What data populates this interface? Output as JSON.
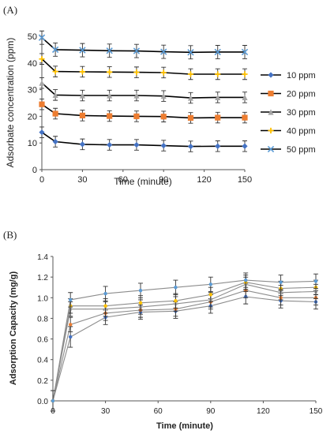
{
  "panels": {
    "a": "(A)",
    "b": "(B)"
  },
  "colors": {
    "10 ppm": "#4472c4",
    "20 ppm": "#ed7d31",
    "30 ppm": "#a5a5a5",
    "40 ppm": "#ffc000",
    "50 ppm": "#5b9bd5",
    "axis": "#555555",
    "error_bar": "#333333"
  },
  "chart_data": [
    {
      "type": "line",
      "panel": "(A)",
      "xlabel": "Time (minute)",
      "ylabel": "Adsorbate concentration (ppm)",
      "xlim": [
        0,
        150
      ],
      "ylim": [
        0,
        50
      ],
      "xticks": [
        0,
        30,
        60,
        90,
        120,
        150
      ],
      "yticks": [
        0,
        10,
        20,
        30,
        40,
        50
      ],
      "grid": false,
      "legend": "right",
      "x": [
        0,
        10,
        30,
        50,
        70,
        90,
        110,
        130,
        150
      ],
      "series": [
        {
          "name": "10 ppm",
          "marker": "diamond",
          "values": [
            14,
            10.5,
            9.5,
            9.3,
            9.3,
            9.0,
            8.7,
            8.8,
            8.8
          ],
          "error": [
            2,
            2,
            2,
            2,
            2,
            2,
            2,
            2,
            2
          ]
        },
        {
          "name": "20 ppm",
          "marker": "square",
          "values": [
            24.5,
            21,
            20.3,
            20.1,
            20,
            19.9,
            19.4,
            19.5,
            19.5
          ],
          "error": [
            2,
            2,
            2,
            2,
            2,
            2,
            2,
            2,
            2
          ]
        },
        {
          "name": "30 ppm",
          "marker": "triangle",
          "values": [
            32.5,
            28,
            27.8,
            27.8,
            27.8,
            27.6,
            26.9,
            27.1,
            27.1
          ],
          "error": [
            2,
            2,
            2,
            2,
            2,
            2,
            2,
            2,
            2
          ]
        },
        {
          "name": "40 ppm",
          "marker": "plus",
          "values": [
            41.5,
            36.8,
            36.7,
            36.6,
            36.5,
            36.4,
            35.8,
            35.8,
            35.8
          ],
          "error": [
            2,
            2,
            2,
            2,
            2,
            2,
            2,
            2,
            2
          ]
        },
        {
          "name": "50 ppm",
          "marker": "x",
          "values": [
            49.5,
            45,
            44.8,
            44.6,
            44.5,
            44.2,
            44.0,
            44.1,
            44.1
          ],
          "error": [
            2.5,
            2.5,
            2.5,
            2.5,
            2.5,
            2.5,
            2.5,
            2.5,
            2.5
          ]
        }
      ]
    },
    {
      "type": "line",
      "panel": "(B)",
      "xlabel": "Time (minute)",
      "ylabel": "Adsorption Capacity (mg/g)",
      "xlim": [
        0,
        150
      ],
      "ylim": [
        0,
        1.4
      ],
      "xticks": [
        0,
        30,
        60,
        90,
        120,
        150
      ],
      "yticks": [
        0.0,
        0.2,
        0.4,
        0.6,
        0.8,
        1.0,
        1.2,
        1.4
      ],
      "grid": false,
      "legend": "none",
      "x": [
        0,
        10,
        30,
        50,
        70,
        90,
        110,
        130,
        150
      ],
      "series": [
        {
          "name": "10 ppm",
          "values": [
            0,
            0.62,
            0.81,
            0.86,
            0.87,
            0.92,
            1.01,
            0.97,
            0.96
          ],
          "error": [
            0.1,
            0.1,
            0.07,
            0.07,
            0.07,
            0.07,
            0.07,
            0.07,
            0.07
          ]
        },
        {
          "name": "20 ppm",
          "values": [
            0,
            0.74,
            0.85,
            0.88,
            0.89,
            0.96,
            1.07,
            1.0,
            1.0
          ],
          "error": [
            0.1,
            0.07,
            0.07,
            0.07,
            0.07,
            0.07,
            0.07,
            0.07,
            0.07
          ]
        },
        {
          "name": "30 ppm",
          "values": [
            0,
            0.89,
            0.89,
            0.91,
            0.94,
            0.98,
            1.13,
            1.05,
            1.06
          ],
          "error": [
            0.1,
            0.07,
            0.07,
            0.07,
            0.07,
            0.07,
            0.07,
            0.07,
            0.07
          ]
        },
        {
          "name": "40 ppm",
          "values": [
            0,
            0.92,
            0.92,
            0.95,
            0.97,
            1.03,
            1.15,
            1.09,
            1.1
          ],
          "error": [
            0.1,
            0.07,
            0.07,
            0.07,
            0.07,
            0.07,
            0.07,
            0.07,
            0.07
          ]
        },
        {
          "name": "50 ppm",
          "values": [
            0,
            0.98,
            1.04,
            1.07,
            1.1,
            1.13,
            1.17,
            1.15,
            1.16
          ],
          "error": [
            0.1,
            0.07,
            0.07,
            0.07,
            0.07,
            0.07,
            0.07,
            0.07,
            0.07
          ]
        }
      ]
    }
  ]
}
